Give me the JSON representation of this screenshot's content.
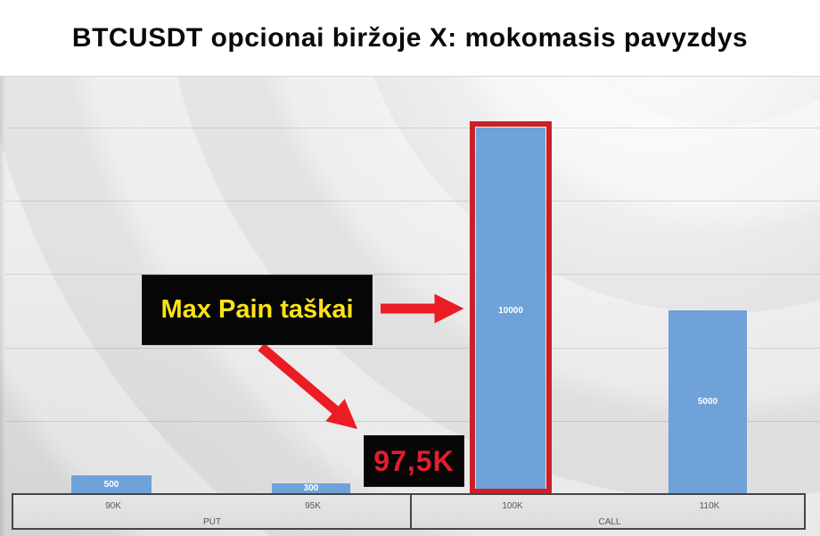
{
  "title": "BTCUSDT opcionai biržoje X: mokomasis pavyzdys",
  "chart_data": {
    "type": "bar",
    "title": "BTCUSDT opcionai biržoje X: mokomasis pavyzdys",
    "categories": [
      "90K",
      "95K",
      "100K",
      "110K"
    ],
    "values": [
      500,
      300,
      10000,
      5000
    ],
    "bar_labels": [
      "500",
      "300",
      "10000",
      "5000"
    ],
    "groups": [
      {
        "label": "PUT",
        "categories": [
          "90K",
          "95K"
        ]
      },
      {
        "label": "CALL",
        "categories": [
          "100K",
          "110K"
        ]
      }
    ],
    "xlabel": "",
    "ylabel": "",
    "ylim": [
      0,
      10000
    ],
    "gridline_interval": 2000,
    "grid": true,
    "legend": false,
    "highlighted_category": "100K"
  },
  "annotations": {
    "max_pain_label": "Max Pain taškai",
    "max_pain_value": "97,5K"
  },
  "colors": {
    "bar_fill": "#6ea2d8",
    "highlight_border": "#cb2028",
    "arrow_red": "#ec1c24",
    "callout_bg": "#060606",
    "callout_yellow_text": "#ffe214",
    "callout_red_text": "#e31e2d",
    "axis_text": "#595959",
    "chart_bg": "#e9e9e9",
    "title_text": "#0a0a0a",
    "bar_value_text": "#ffffff"
  }
}
